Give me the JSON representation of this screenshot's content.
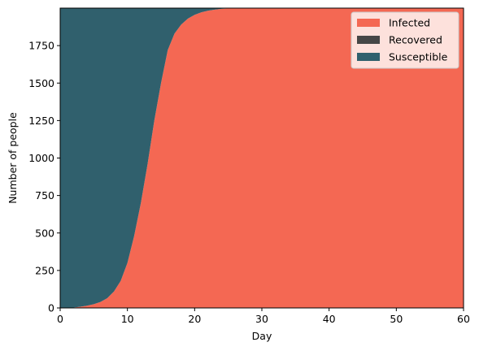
{
  "chart_data": {
    "type": "area",
    "stacked": true,
    "xlabel": "Day",
    "ylabel": "Number of people",
    "xlim": [
      0,
      60
    ],
    "ylim": [
      0,
      2000
    ],
    "xticks": [
      0,
      10,
      20,
      30,
      40,
      50,
      60
    ],
    "xtick_labels": [
      "0",
      "10",
      "20",
      "30",
      "40",
      "50",
      "60"
    ],
    "yticks": [
      0,
      250,
      500,
      750,
      1000,
      1250,
      1500,
      1750
    ],
    "ytick_labels": [
      "0",
      "250",
      "500",
      "750",
      "1000",
      "1250",
      "1500",
      "1750"
    ],
    "grid": false,
    "legend_position": "top-right",
    "x": [
      0,
      1,
      2,
      3,
      4,
      5,
      6,
      7,
      8,
      9,
      10,
      11,
      12,
      13,
      14,
      15,
      16,
      17,
      18,
      19,
      20,
      21,
      22,
      23,
      24,
      25,
      26,
      27,
      28,
      29,
      30,
      35,
      40,
      45,
      50,
      55,
      60
    ],
    "series": [
      {
        "name": "Infected",
        "color": "#f46853",
        "values": [
          0,
          1,
          3,
          8,
          15,
          25,
          40,
          65,
          110,
          180,
          300,
          480,
          700,
          960,
          1250,
          1500,
          1720,
          1830,
          1890,
          1930,
          1955,
          1972,
          1983,
          1990,
          1995,
          1998,
          2000,
          2000,
          2000,
          2000,
          2000,
          2000,
          2000,
          2000,
          2000,
          2000,
          2000
        ]
      },
      {
        "name": "Recovered",
        "color": "#464646",
        "values": [
          0,
          0,
          0,
          0,
          0,
          0,
          0,
          0,
          0,
          0,
          0,
          0,
          0,
          0,
          0,
          0,
          0,
          0,
          0,
          0,
          0,
          0,
          0,
          0,
          0,
          0,
          0,
          0,
          0,
          0,
          0,
          0,
          0,
          0,
          0,
          0,
          0
        ]
      },
      {
        "name": "Susceptible",
        "color": "#30606d",
        "values": [
          2000,
          1999,
          1997,
          1992,
          1985,
          1975,
          1960,
          1935,
          1890,
          1820,
          1700,
          1520,
          1300,
          1040,
          750,
          500,
          280,
          170,
          110,
          70,
          45,
          28,
          17,
          10,
          5,
          2,
          0,
          0,
          0,
          0,
          0,
          0,
          0,
          0,
          0,
          0,
          0
        ]
      }
    ]
  }
}
